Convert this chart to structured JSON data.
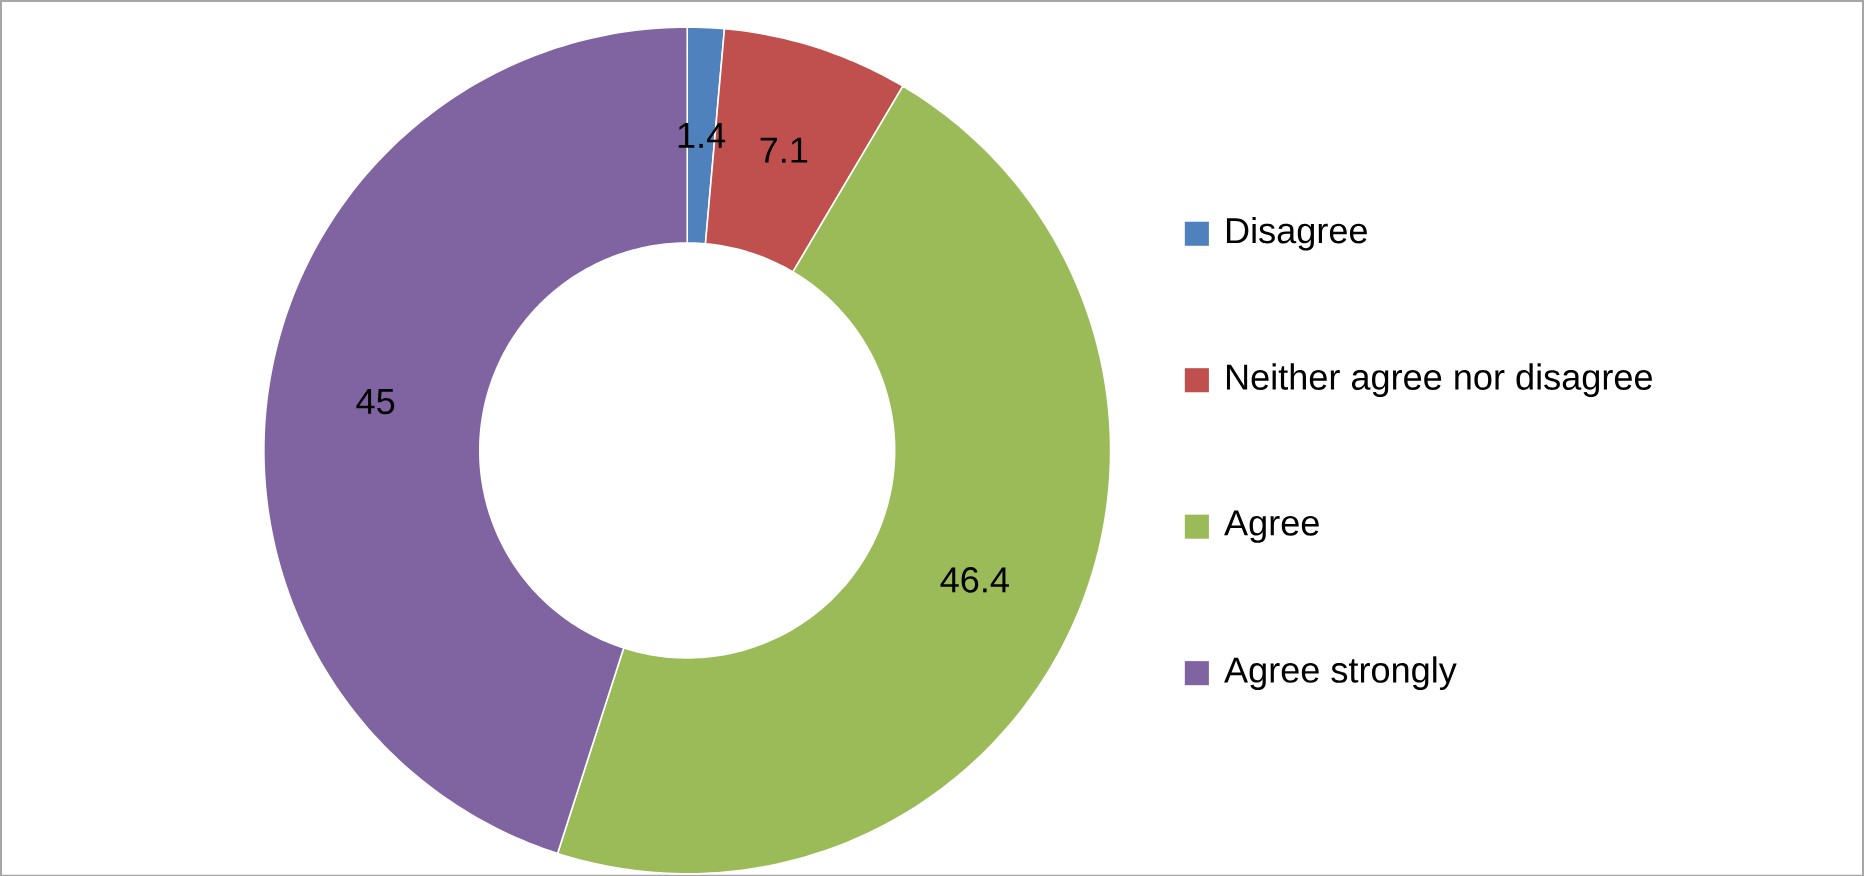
{
  "chart_data": {
    "type": "donut",
    "categories": [
      "Disagree",
      "Neither agree nor disagree",
      "Agree",
      "Agree strongly"
    ],
    "values": [
      1.4,
      7.1,
      46.4,
      45
    ],
    "colors": [
      "#4f81bd",
      "#c0504d",
      "#9bbb59",
      "#8064a2"
    ],
    "data_labels": true,
    "legend": "right"
  }
}
